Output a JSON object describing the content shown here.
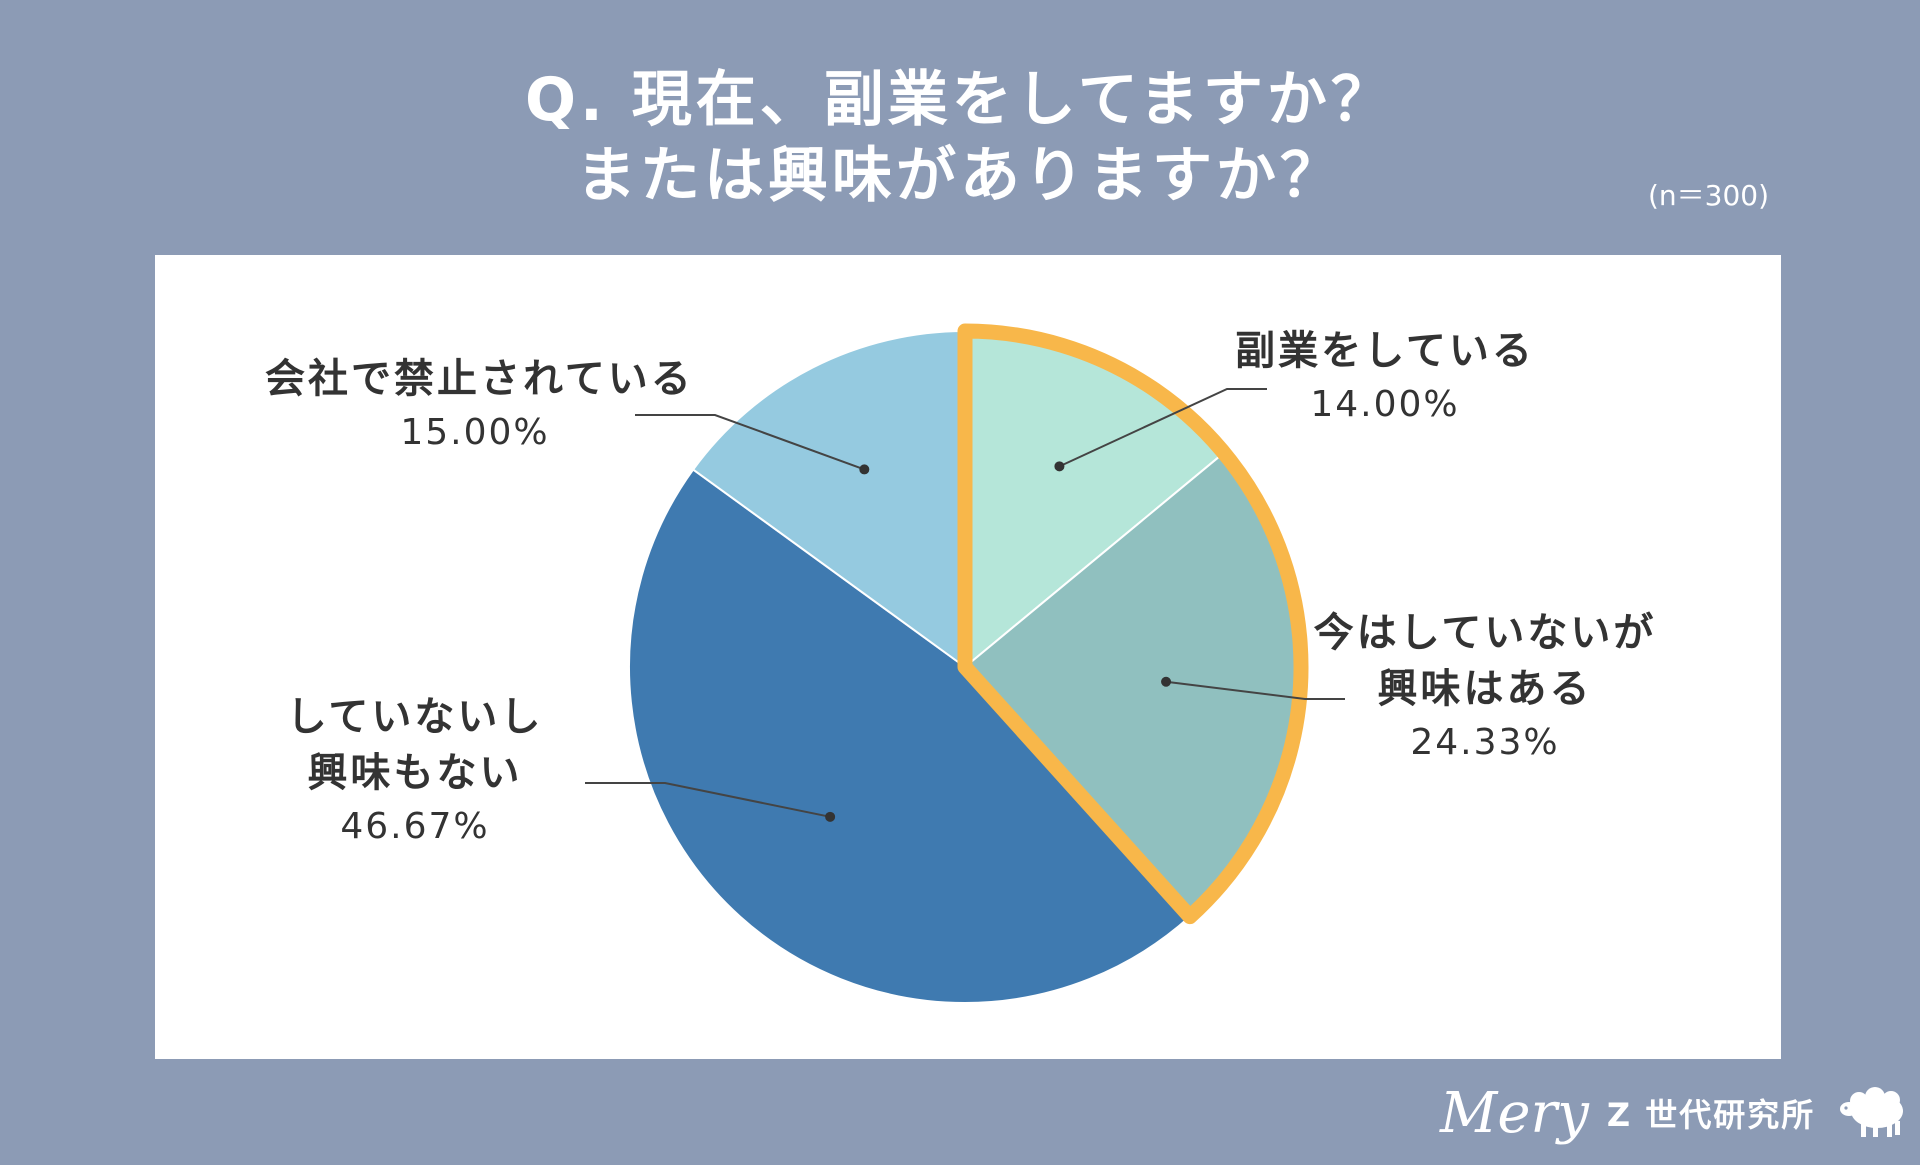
{
  "title": {
    "line1": "Q. 現在、副業をしてますか？",
    "line2": "または興味がありますか？"
  },
  "sample_size": "(n＝300)",
  "chart_data": {
    "type": "pie",
    "title": "Q. 現在、副業をしてますか？ または興味がありますか？",
    "slices": [
      {
        "label": "副業をしている",
        "value": 14.0,
        "display": "14.00%",
        "color": "#b5e6d9"
      },
      {
        "label": "今はしていないが興味はある",
        "value": 24.33,
        "display": "24.33%",
        "color": "#90c0bf"
      },
      {
        "label": "していないし興味もない",
        "value": 46.67,
        "display": "46.67%",
        "color": "#3f7ab0"
      },
      {
        "label": "会社で禁止されている",
        "value": 15.0,
        "display": "15.00%",
        "color": "#95cae0"
      }
    ],
    "highlight": {
      "slices": [
        0,
        1
      ],
      "color": "#f8b74a"
    },
    "start_angle": "12 o'clock",
    "direction": "clockwise"
  },
  "labels": {
    "s0": {
      "lines": [
        "副業をしている"
      ],
      "pct": "14.00%"
    },
    "s1": {
      "lines": [
        "今はしていないが",
        "興味はある"
      ],
      "pct": "24.33%"
    },
    "s2": {
      "lines": [
        "していないし",
        "興味もない"
      ],
      "pct": "46.67%"
    },
    "s3": {
      "lines": [
        "会社で禁止されている"
      ],
      "pct": "15.00%"
    }
  },
  "footer": {
    "brand": "Mery",
    "lab": "Z 世代研究所",
    "mascot_icon": "sheep-icon"
  }
}
